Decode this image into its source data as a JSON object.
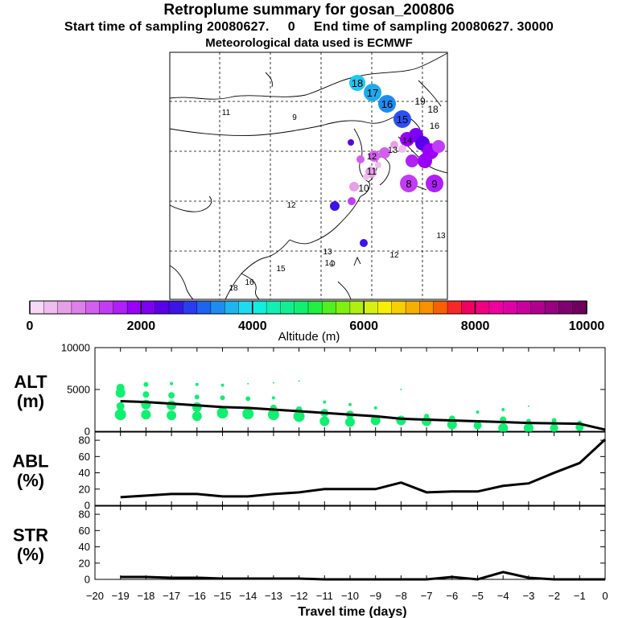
{
  "header": {
    "title": "Retroplume summary for gosan_200806",
    "sampling": "Start time of sampling 20080627.     0     End time of sampling 20080627. 30000",
    "met_data": "Meteorological data used is ECMWF"
  },
  "colorbar": {
    "ticks": [
      "0",
      "2000",
      "4000",
      "6000",
      "8000",
      "10000"
    ],
    "label": "Altitude (m)",
    "colors": [
      "#f7d9f7",
      "#efbdef",
      "#e6a1e6",
      "#dd80ea",
      "#d35ff0",
      "#c33cf5",
      "#b01ef8",
      "#9a00f7",
      "#7d00f2",
      "#5a00e8",
      "#3c14e6",
      "#2a3cf0",
      "#1e64f0",
      "#1e8cf0",
      "#1eb4f0",
      "#1edcf0",
      "#10f0e0",
      "#10f0b4",
      "#10f090",
      "#10f070",
      "#20f040",
      "#50f020",
      "#80f010",
      "#b0f010",
      "#d8f010",
      "#f8f000",
      "#f8d000",
      "#f8b000",
      "#f89000",
      "#f86000",
      "#f82828",
      "#f00060",
      "#f00080",
      "#f000a0",
      "#e000a8",
      "#c800a0",
      "#b00090",
      "#980080",
      "#800070",
      "#700060"
    ]
  },
  "map": {
    "labels": [
      {
        "text": "18",
        "color": "#1ec8f0"
      },
      {
        "text": "17",
        "color": "#1eaaf0"
      },
      {
        "text": "16",
        "color": "#1e8cf0"
      },
      {
        "text": "15",
        "color": "#2a50f0"
      },
      {
        "text": "19",
        "color": "#1ec8f0"
      },
      {
        "text": "18",
        "color": "#1ec8f0"
      },
      {
        "text": "11",
        "color": "#10f0b4"
      },
      {
        "text": "9",
        "color": "#2a50f0"
      },
      {
        "text": "12",
        "color": "#2a50f0"
      },
      {
        "text": "13",
        "color": "#1eaaf0"
      },
      {
        "text": "12",
        "color": "#1e8cf0"
      },
      {
        "text": "13",
        "color": "#1e8cf0"
      },
      {
        "text": "14",
        "color": "#1eaaf0"
      },
      {
        "text": "15",
        "color": "#10f0b4"
      },
      {
        "text": "16",
        "color": "#10f0b4"
      },
      {
        "text": "18",
        "color": "#10f0b4"
      },
      {
        "text": "8",
        "color": "#c33cf5"
      },
      {
        "text": "9",
        "color": "#c33cf5"
      },
      {
        "text": "10",
        "color": "#e6a1e6"
      },
      {
        "text": "11",
        "color": "#e6a1e6"
      },
      {
        "text": "12",
        "color": "#d35ff0"
      },
      {
        "text": "13",
        "color": "#d35ff0"
      },
      {
        "text": "14",
        "color": "#b01ef8"
      },
      {
        "text": "16",
        "color": "#1ec8f0"
      }
    ]
  },
  "chart_data": [
    {
      "type": "scatter",
      "title": "ALT (m)",
      "panel_label_1": "ALT",
      "panel_label_2": "(m)",
      "ylim": [
        0,
        10000
      ],
      "yticks": [
        "0",
        "5000",
        "10000"
      ],
      "xlim": [
        -20,
        0
      ],
      "mean_line": {
        "x": [
          -19,
          -18,
          -17,
          -16,
          -15,
          -14,
          -13,
          -12,
          -11,
          -10,
          -9,
          -8,
          -7,
          -6,
          -5,
          -4,
          -3,
          -2,
          -1,
          0
        ],
        "y": [
          3600,
          3500,
          3300,
          3100,
          2900,
          2800,
          2600,
          2400,
          2200,
          2000,
          1800,
          1500,
          1400,
          1300,
          1200,
          1100,
          1000,
          950,
          900,
          200
        ]
      },
      "scatter_points": [
        {
          "x": -19,
          "y": 2000,
          "s": 7
        },
        {
          "x": -19,
          "y": 3000,
          "s": 5
        },
        {
          "x": -19,
          "y": 4600,
          "s": 6
        },
        {
          "x": -19,
          "y": 5200,
          "s": 5
        },
        {
          "x": -18,
          "y": 2000,
          "s": 6
        },
        {
          "x": -18,
          "y": 3200,
          "s": 6
        },
        {
          "x": -18,
          "y": 4400,
          "s": 4
        },
        {
          "x": -18,
          "y": 5600,
          "s": 3
        },
        {
          "x": -17,
          "y": 1900,
          "s": 6
        },
        {
          "x": -17,
          "y": 3100,
          "s": 6
        },
        {
          "x": -17,
          "y": 4300,
          "s": 4
        },
        {
          "x": -17,
          "y": 5700,
          "s": 2
        },
        {
          "x": -16,
          "y": 1800,
          "s": 6
        },
        {
          "x": -16,
          "y": 2900,
          "s": 6
        },
        {
          "x": -16,
          "y": 4100,
          "s": 3
        },
        {
          "x": -16,
          "y": 5600,
          "s": 2
        },
        {
          "x": -15,
          "y": 2200,
          "s": 7
        },
        {
          "x": -15,
          "y": 4000,
          "s": 3
        },
        {
          "x": -15,
          "y": 5500,
          "s": 2
        },
        {
          "x": -14,
          "y": 2100,
          "s": 7
        },
        {
          "x": -14,
          "y": 3900,
          "s": 3
        },
        {
          "x": -14,
          "y": 5700,
          "s": 1
        },
        {
          "x": -13,
          "y": 2000,
          "s": 7
        },
        {
          "x": -13,
          "y": 2800,
          "s": 4
        },
        {
          "x": -13,
          "y": 4000,
          "s": 2
        },
        {
          "x": -13,
          "y": 5800,
          "s": 1
        },
        {
          "x": -12,
          "y": 1800,
          "s": 7
        },
        {
          "x": -12,
          "y": 2600,
          "s": 4
        },
        {
          "x": -12,
          "y": 6000,
          "s": 1
        },
        {
          "x": -11,
          "y": 1200,
          "s": 6
        },
        {
          "x": -11,
          "y": 2200,
          "s": 5
        },
        {
          "x": -11,
          "y": 3500,
          "s": 2
        },
        {
          "x": -10,
          "y": 1100,
          "s": 6
        },
        {
          "x": -10,
          "y": 2000,
          "s": 5
        },
        {
          "x": -10,
          "y": 3200,
          "s": 2
        },
        {
          "x": -9,
          "y": 1300,
          "s": 6
        },
        {
          "x": -9,
          "y": 2800,
          "s": 2
        },
        {
          "x": -8,
          "y": 1300,
          "s": 6
        },
        {
          "x": -8,
          "y": 5000,
          "s": 1
        },
        {
          "x": -7,
          "y": 1200,
          "s": 6
        },
        {
          "x": -7,
          "y": 1800,
          "s": 3
        },
        {
          "x": -6,
          "y": 800,
          "s": 6
        },
        {
          "x": -6,
          "y": 1500,
          "s": 4
        },
        {
          "x": -5,
          "y": 700,
          "s": 5
        },
        {
          "x": -5,
          "y": 2300,
          "s": 2
        },
        {
          "x": -4,
          "y": 400,
          "s": 6
        },
        {
          "x": -4,
          "y": 1400,
          "s": 4
        },
        {
          "x": -4,
          "y": 2600,
          "s": 2
        },
        {
          "x": -3,
          "y": 400,
          "s": 6
        },
        {
          "x": -3,
          "y": 1200,
          "s": 3
        },
        {
          "x": -3,
          "y": 3000,
          "s": 1
        },
        {
          "x": -2,
          "y": 400,
          "s": 5
        },
        {
          "x": -2,
          "y": 1300,
          "s": 3
        },
        {
          "x": -1,
          "y": 500,
          "s": 5
        },
        {
          "x": -1,
          "y": 1000,
          "s": 3
        }
      ],
      "point_color": "#10f070"
    },
    {
      "type": "line",
      "title": "ABL (%)",
      "panel_label_1": "ABL",
      "panel_label_2": "(%)",
      "ylim": [
        0,
        90
      ],
      "yticks": [
        "0",
        "20",
        "40",
        "60",
        "80"
      ],
      "xlim": [
        -20,
        0
      ],
      "x": [
        -19,
        -18,
        -17,
        -16,
        -15,
        -14,
        -13,
        -12,
        -11,
        -10,
        -9,
        -8,
        -7,
        -6,
        -5,
        -4,
        -3,
        -2,
        -1,
        0
      ],
      "y": [
        10,
        12,
        14,
        14,
        11,
        11,
        14,
        16,
        20,
        20,
        20,
        28,
        16,
        17,
        17,
        24,
        27,
        40,
        52,
        81
      ]
    },
    {
      "type": "line",
      "title": "STR (%)",
      "panel_label_1": "STR",
      "panel_label_2": "(%)",
      "ylim": [
        0,
        90
      ],
      "yticks": [
        "0",
        "20",
        "40",
        "60",
        "80"
      ],
      "xlim": [
        -20,
        0
      ],
      "x": [
        -19,
        -18,
        -17,
        -16,
        -15,
        -14,
        -13,
        -12,
        -11,
        -10,
        -9,
        -8,
        -7,
        -6,
        -5,
        -4,
        -3,
        -2,
        -1,
        0
      ],
      "y": [
        3,
        3,
        2,
        2,
        1,
        1,
        1,
        1,
        0,
        0,
        0,
        0,
        0,
        3,
        0,
        9,
        2,
        0,
        0,
        0
      ]
    }
  ],
  "xaxis": {
    "ticks": [
      "−20",
      "−19",
      "−18",
      "−17",
      "−16",
      "−15",
      "−14",
      "−13",
      "−12",
      "−11",
      "−10",
      "−9",
      "−8",
      "−7",
      "−6",
      "−5",
      "−4",
      "−3",
      "−2",
      "−1",
      "0"
    ],
    "label": "Travel time (days)"
  }
}
